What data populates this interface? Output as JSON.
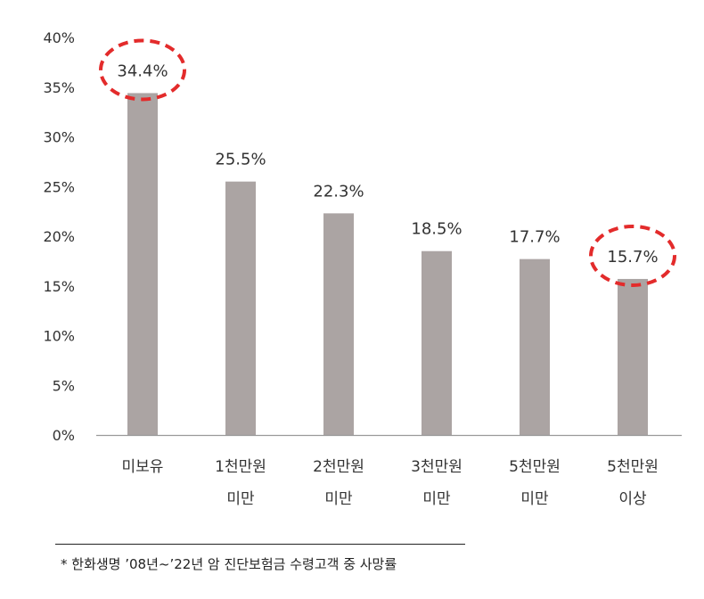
{
  "chart_data": {
    "type": "bar",
    "categories": [
      "미보유",
      "1천만원 미만",
      "2천만원 미만",
      "3천만원 미만",
      "5천만원 미만",
      "5천만원 이상"
    ],
    "category_lines": [
      [
        "미보유"
      ],
      [
        "1천만원",
        "미만"
      ],
      [
        "2천만원",
        "미만"
      ],
      [
        "3천만원",
        "미만"
      ],
      [
        "5천만원",
        "미만"
      ],
      [
        "5천만원",
        "이상"
      ]
    ],
    "values": [
      34.4,
      25.5,
      22.3,
      18.5,
      17.7,
      15.7
    ],
    "data_labels": [
      "34.4%",
      "25.5%",
      "22.3%",
      "18.5%",
      "17.7%",
      "15.7%"
    ],
    "y_ticks": [
      "0%",
      "5%",
      "10%",
      "15%",
      "20%",
      "25%",
      "30%",
      "35%",
      "40%"
    ],
    "ylim": [
      0,
      40
    ],
    "highlighted": [
      0,
      5
    ],
    "grid": false,
    "title": "",
    "xlabel": "",
    "ylabel": ""
  },
  "footnote": "* 한화생명 ’08년~’22년 암 진단보험금 수령고객 중 사망률",
  "colors": {
    "bar": "#aba4a3",
    "highlight": "#e32b2b",
    "axis": "#999999",
    "text": "#333333"
  }
}
